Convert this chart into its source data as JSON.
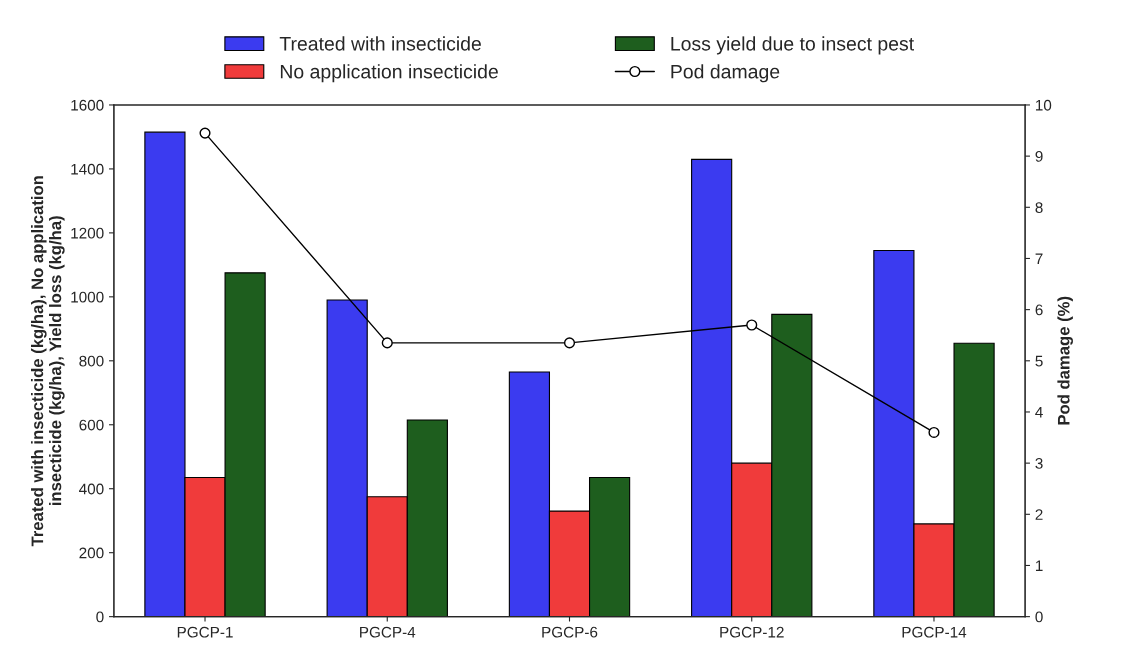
{
  "chart_data": {
    "type": "bar",
    "categories": [
      "PGCP-1",
      "PGCP-4",
      "PGCP-6",
      "PGCP-12",
      "PGCP-14"
    ],
    "ylabel": "Treated with insecticide (kg/ha), No application\ninsecticide (kg/ha), Yield loss (kg/ha)",
    "y2label": "Pod damage (%)",
    "series": [
      {
        "name": "Treated with insecticide",
        "color": "#3b3bf0",
        "values": [
          1515,
          990,
          765,
          1430,
          1145
        ]
      },
      {
        "name": "No application insecticide",
        "color": "#f03b3b",
        "values": [
          435,
          375,
          330,
          480,
          290
        ]
      },
      {
        "name": "Loss yield due to insect pest",
        "color": "#1e5e1e",
        "values": [
          1075,
          615,
          435,
          945,
          855
        ]
      },
      {
        "name": "Pod damage",
        "type": "line",
        "axis": "y2",
        "color": "#000000",
        "marker": "circle",
        "values": [
          9.45,
          5.35,
          5.35,
          5.7,
          3.6
        ]
      }
    ],
    "ylim": [
      0,
      1600
    ],
    "yticks": [
      0,
      200,
      400,
      600,
      800,
      1000,
      1200,
      1400,
      1600
    ],
    "y2lim": [
      0,
      10
    ],
    "y2ticks": [
      0,
      1,
      2,
      3,
      4,
      5,
      6,
      7,
      8,
      9,
      10
    ],
    "grid": false,
    "legend": "top"
  }
}
